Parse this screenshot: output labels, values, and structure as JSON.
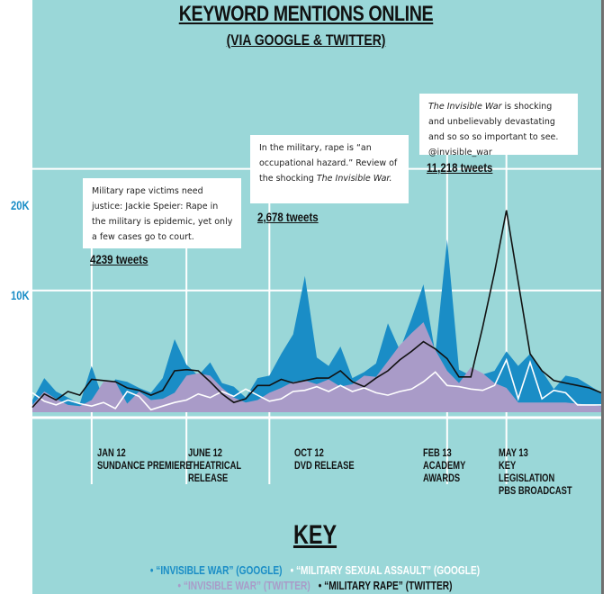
{
  "title": "KEYWORD MENTIONS ONLINE",
  "subtitle": "(VIA GOOGLE & TWITTER)",
  "colors": {
    "background": "#9ad7d8",
    "invisible_war_google": "#1a8dc6",
    "military_sexual_assault_google": "#ffffff",
    "invisible_war_twitter": "#a99bc8",
    "military_rape_twitter": "#111111"
  },
  "callouts": [
    {
      "text_before": "Military rape victims need justice: Jackie Speier: Rape in the military is epidemic, yet only a few cases go to court.",
      "text_italic": "",
      "text_after": "",
      "tweets": "4239 tweets"
    },
    {
      "text_before": "In the military, rape is “an occupational hazard.” Review of the shocking ",
      "text_italic": "The Invisible War.",
      "text_after": "",
      "tweets": "2,678 tweets"
    },
    {
      "text_before": "",
      "text_italic": "The Invisible War",
      "text_after": " is shocking and unbelievably devastating and so so so important to see. @invisible_war",
      "tweets": "11,218 tweets"
    }
  ],
  "events": [
    {
      "label": "JAN 12\nSUNDANCE PREMIERE"
    },
    {
      "label": "JUNE 12\nTHEATRICAL\nRELEASE"
    },
    {
      "label": "OCT 12\nDVD RELEASE"
    },
    {
      "label": "FEB 13\nACADEMY\nAWARDS"
    },
    {
      "label": "MAY 13\nKEY\nLEGISLATION\nPBS BROADCAST"
    }
  ],
  "key": {
    "title": "KEY",
    "items": [
      {
        "label": "• “INVISIBLE WAR” (GOOGLE)",
        "color": "#1a8dc6"
      },
      {
        "label": "• “MILITARY SEXUAL ASSAULT” (GOOGLE)",
        "color": "#ffffff"
      },
      {
        "label": "• “INVISIBLE WAR” (TWITTER)",
        "color": "#a99bc8"
      },
      {
        "label": "• “MILITARY RAPE” (TWITTER)",
        "color": "#111111"
      }
    ]
  },
  "chart_data": {
    "type": "area",
    "title": "KEYWORD MENTIONS ONLINE",
    "subtitle": "(VIA GOOGLE & TWITTER)",
    "ylim": [
      0,
      25000
    ],
    "yticks": [
      {
        "value": 10000,
        "label": "10K"
      },
      {
        "value": 20000,
        "label": "20K"
      }
    ],
    "grid": true,
    "x": [
      0,
      1,
      2,
      3,
      4,
      5,
      6,
      7,
      8,
      9,
      10,
      11,
      12,
      13,
      14,
      15,
      16,
      17,
      18,
      19,
      20,
      21,
      22,
      23,
      24,
      25,
      26,
      27,
      28,
      29,
      30,
      31,
      32,
      33,
      34,
      35,
      36,
      37,
      38,
      39,
      40,
      41,
      42,
      43,
      44,
      45,
      46,
      47,
      48
    ],
    "series": [
      {
        "name": "“INVISIBLE WAR” (GOOGLE)",
        "values": [
          1000,
          2800,
          1700,
          1200,
          700,
          3800,
          1000,
          2700,
          2500,
          2000,
          1600,
          2800,
          6000,
          3900,
          3000,
          4100,
          2400,
          2100,
          1200,
          2800,
          3000,
          4800,
          6400,
          11200,
          4500,
          3800,
          5400,
          2800,
          3300,
          4000,
          7300,
          5100,
          7700,
          10500,
          4800,
          14200,
          3500,
          3000,
          3100,
          3400,
          5000,
          3800,
          4800,
          3400,
          1900,
          3000,
          2800,
          2200,
          1600
        ]
      },
      {
        "name": "“MILITARY SEXUAL ASSAULT” (GOOGLE)",
        "values": [
          1600,
          900,
          600,
          1000,
          700,
          500,
          800,
          300,
          1700,
          1300,
          200,
          500,
          800,
          1000,
          1500,
          1200,
          1700,
          1300,
          1900,
          1400,
          900,
          1100,
          1700,
          1800,
          2100,
          1700,
          2200,
          1700,
          2000,
          1600,
          1400,
          1700,
          1900,
          2500,
          3300,
          2200,
          2100,
          1900,
          1800,
          2200,
          4300,
          1100,
          4100,
          1100,
          1800,
          1600,
          600,
          600,
          600
        ]
      },
      {
        "name": "“INVISIBLE WAR” (TWITTER)",
        "values": [
          600,
          1700,
          1100,
          600,
          500,
          1000,
          2500,
          2500,
          700,
          1700,
          1000,
          1100,
          1600,
          3000,
          3200,
          3000,
          2000,
          1200,
          800,
          1000,
          1600,
          2000,
          2500,
          2600,
          2300,
          2700,
          2100,
          2300,
          3000,
          2900,
          4200,
          5500,
          6500,
          7400,
          5100,
          3400,
          2400,
          3700,
          3200,
          2400,
          2000,
          800,
          800,
          800,
          800,
          800,
          700,
          600,
          500
        ]
      },
      {
        "name": "“MILITARY RAPE” (TWITTER)",
        "values": [
          400,
          1500,
          1000,
          1700,
          1400,
          2700,
          2600,
          2500,
          2000,
          1800,
          1400,
          1800,
          3400,
          3500,
          3400,
          2500,
          1500,
          800,
          1100,
          2200,
          2200,
          2700,
          2400,
          2600,
          2800,
          2800,
          3400,
          2500,
          2100,
          2800,
          3400,
          4300,
          5000,
          5800,
          5200,
          4400,
          2900,
          2900,
          7000,
          11500,
          16600,
          10700,
          4800,
          3400,
          2600,
          2400,
          2200,
          2000,
          1600
        ]
      }
    ],
    "events": [
      {
        "x": 5,
        "label": "JAN 12 SUNDANCE PREMIERE"
      },
      {
        "x": 13,
        "label": "JUNE 12 THEATRICAL RELEASE"
      },
      {
        "x": 20,
        "label": "OCT 12 DVD RELEASE"
      },
      {
        "x": 35,
        "label": "FEB 13 ACADEMY AWARDS"
      },
      {
        "x": 40,
        "label": "MAY 13 KEY LEGISLATION PBS BROADCAST"
      }
    ],
    "annotations": [
      {
        "x": 5,
        "tweets": "4239 tweets"
      },
      {
        "x": 20,
        "tweets": "2,678 tweets"
      },
      {
        "x": 35,
        "tweets": "11,218 tweets"
      }
    ]
  }
}
